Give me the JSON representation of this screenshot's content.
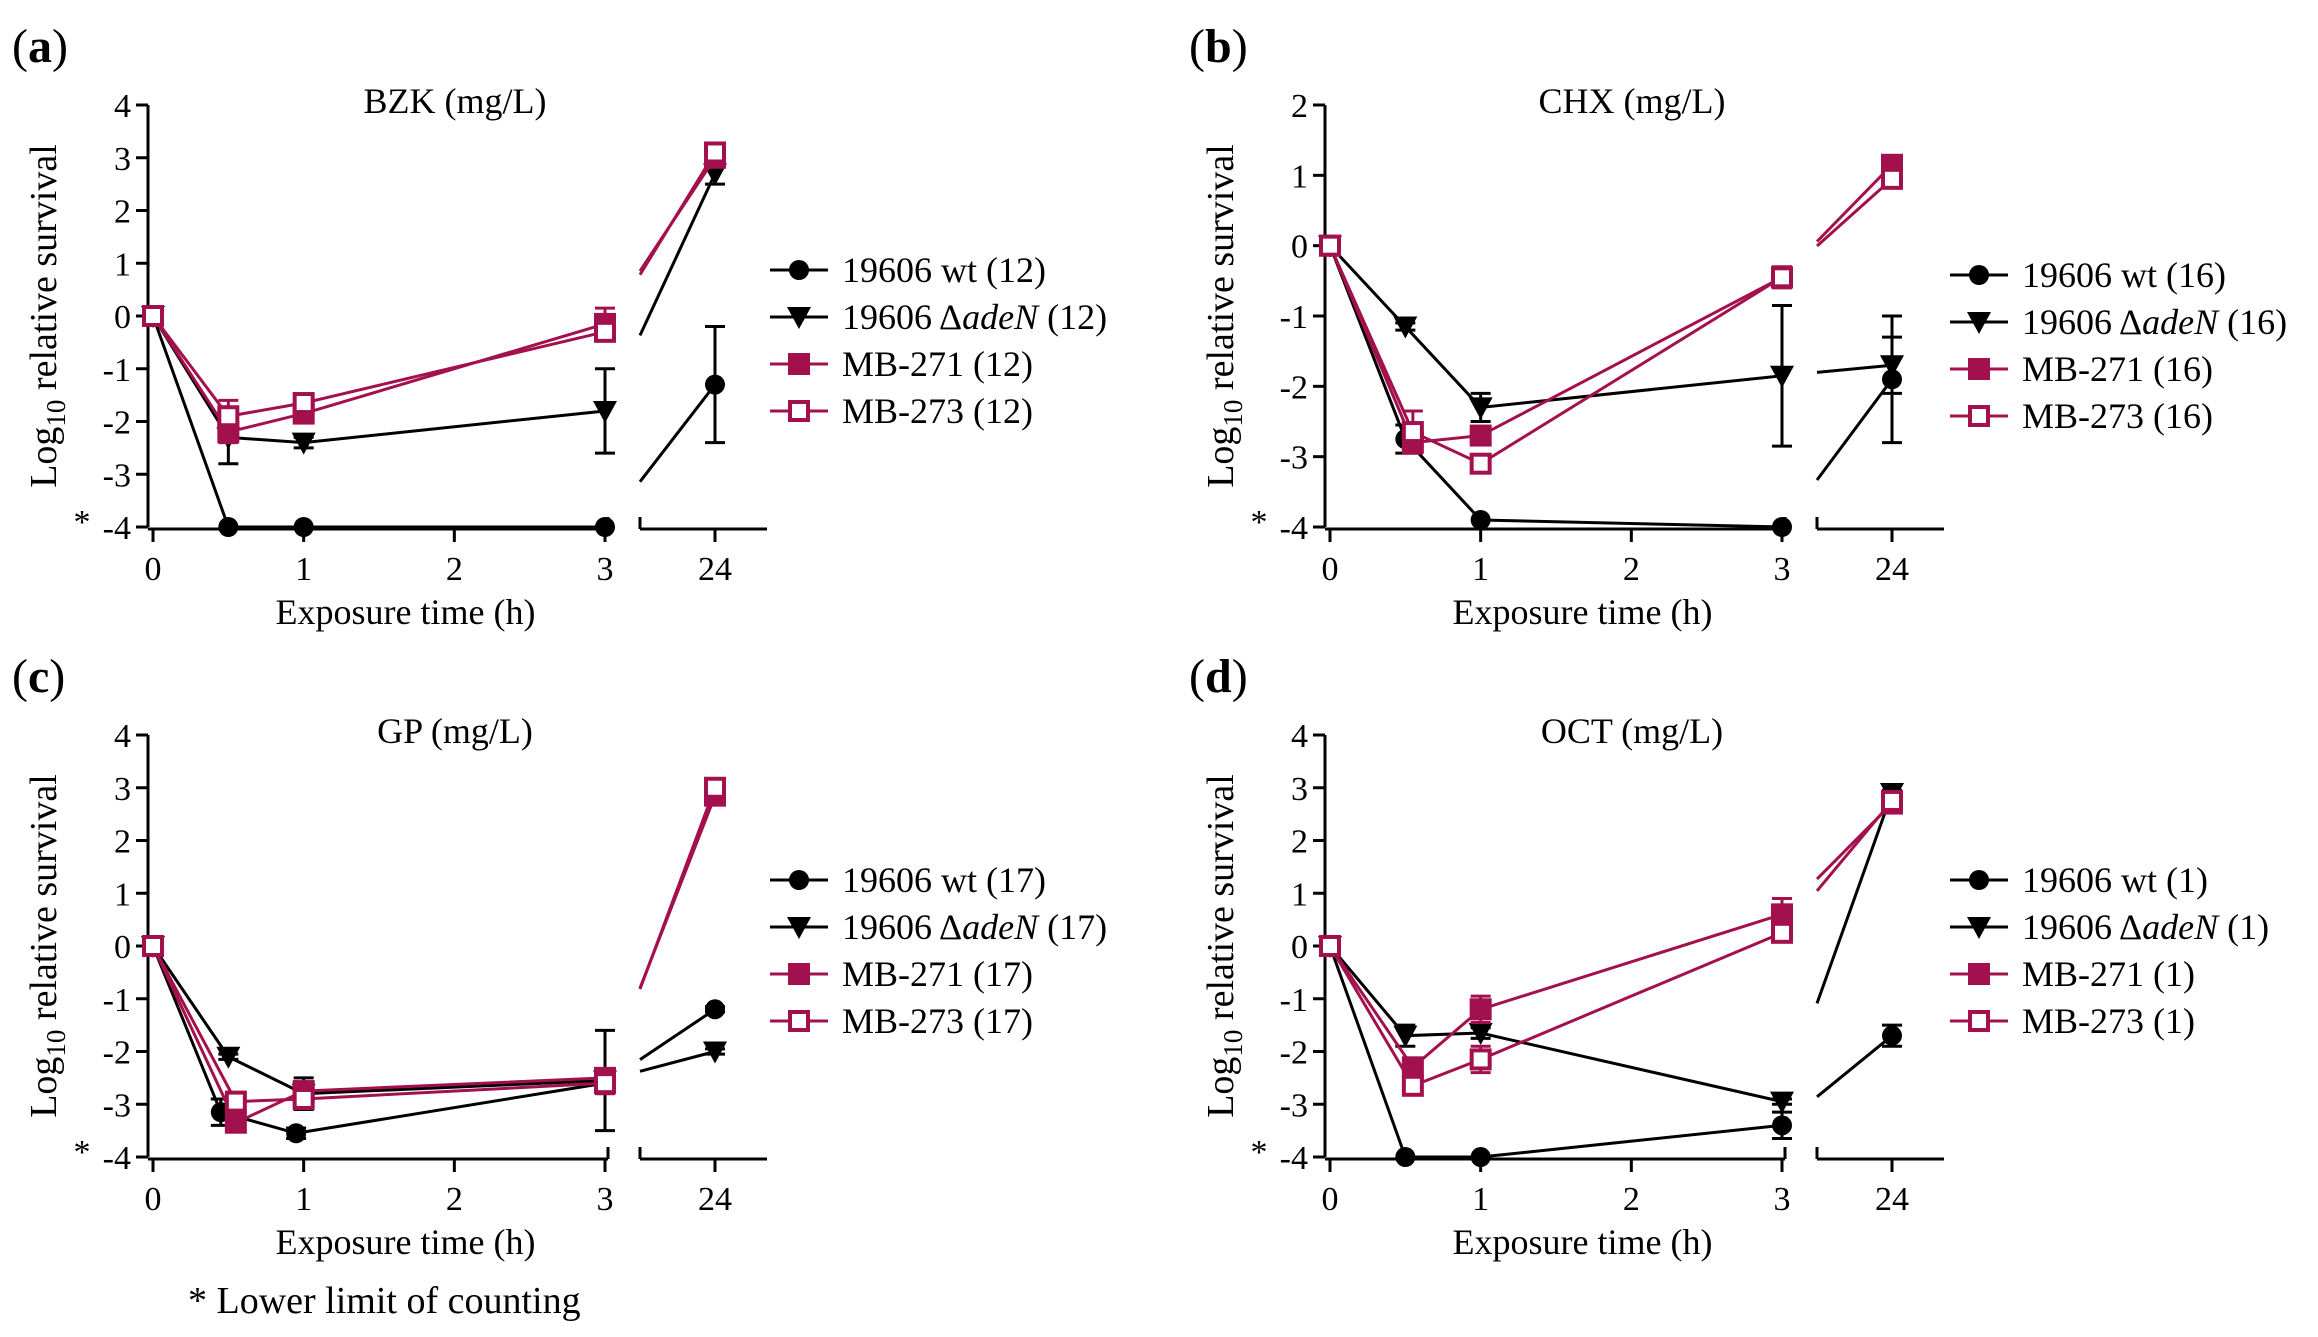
{
  "footnote": "* Lower limit of counting",
  "colors": {
    "black_series": "#000000",
    "magenta_series": "#a3104e"
  },
  "chart_data": [
    {
      "type": "line",
      "panel_label": "(a)",
      "title": "BZK (mg/L)",
      "xlabel": "Exposure time (h)",
      "ylabel": "Log10 relative survival",
      "ylabel_parts": {
        "main": "Log",
        "sub": "10",
        "rest": " relative survival"
      },
      "x_ticks": [
        "0",
        "1",
        "2",
        "3",
        "24"
      ],
      "y_ticks": [
        "4",
        "3",
        "2",
        "1",
        "0",
        "-1",
        "-2",
        "-3",
        "-4"
      ],
      "ylim": [
        -4,
        4
      ],
      "lower_limit_marker": "*",
      "legend_position": "right",
      "series": [
        {
          "name": "19606 wt",
          "value_label": " (12)",
          "italic": "",
          "marker": "circle",
          "color": "#000000",
          "points": [
            [
              0,
              0
            ],
            [
              0.5,
              -4
            ],
            [
              1,
              -4
            ],
            [
              3,
              -4
            ],
            [
              24,
              -1.3
            ]
          ],
          "errors": [
            0,
            0,
            0,
            0,
            1.1
          ]
        },
        {
          "name": "19606 Δ",
          "value_label": " (12)",
          "italic": "adeN",
          "marker": "triangle",
          "color": "#000000",
          "points": [
            [
              0,
              0
            ],
            [
              0.5,
              -2.3
            ],
            [
              1,
              -2.4
            ],
            [
              3,
              -1.8
            ],
            [
              24,
              2.7
            ]
          ],
          "errors": [
            0,
            0.5,
            0.1,
            0.8,
            0.2
          ]
        },
        {
          "name": "MB-271",
          "value_label": " (12)",
          "italic": "",
          "marker": "square-filled",
          "color": "#a3104e",
          "points": [
            [
              0,
              0
            ],
            [
              0.5,
              -2.2
            ],
            [
              1,
              -1.85
            ],
            [
              3,
              -0.15
            ],
            [
              24,
              3.0
            ]
          ],
          "errors": [
            0,
            0.2,
            0.1,
            0.3,
            0.1
          ]
        },
        {
          "name": "MB-273",
          "value_label": " (12)",
          "italic": "",
          "marker": "square-open",
          "color": "#a3104e",
          "points": [
            [
              0,
              0
            ],
            [
              0.5,
              -1.9
            ],
            [
              1,
              -1.65
            ],
            [
              3,
              -0.3
            ],
            [
              24,
              3.1
            ]
          ],
          "errors": [
            0,
            0.3,
            0.1,
            0.1,
            0.1
          ]
        }
      ]
    },
    {
      "type": "line",
      "panel_label": "(b)",
      "title": "CHX (mg/L)",
      "xlabel": "Exposure time (h)",
      "ylabel": "Log10 relative survival",
      "ylabel_parts": {
        "main": "Log",
        "sub": "10",
        "rest": " relative survival"
      },
      "x_ticks": [
        "0",
        "1",
        "2",
        "3",
        "24"
      ],
      "y_ticks": [
        "2",
        "1",
        "0",
        "-1",
        "-2",
        "-3",
        "-4"
      ],
      "ylim": [
        -4,
        2
      ],
      "lower_limit_marker": "*",
      "legend_position": "right",
      "series": [
        {
          "name": "19606 wt",
          "value_label": " (16)",
          "italic": "",
          "marker": "circle",
          "color": "#000000",
          "points": [
            [
              0,
              0
            ],
            [
              0.5,
              -2.75
            ],
            [
              1,
              -3.9
            ],
            [
              3,
              -4
            ],
            [
              24,
              -1.9
            ]
          ],
          "errors": [
            0,
            0.2,
            0,
            0,
            0.9
          ]
        },
        {
          "name": "19606 Δ",
          "value_label": " (16)",
          "italic": "adeN",
          "marker": "triangle",
          "color": "#000000",
          "points": [
            [
              0,
              0
            ],
            [
              0.5,
              -1.15
            ],
            [
              1,
              -2.3
            ],
            [
              3,
              -1.85
            ],
            [
              24,
              -1.7
            ]
          ],
          "errors": [
            0,
            0.05,
            0.2,
            1.0,
            0.4
          ]
        },
        {
          "name": "MB-271",
          "value_label": " (16)",
          "italic": "",
          "marker": "square-filled",
          "color": "#a3104e",
          "points": [
            [
              0,
              0
            ],
            [
              0.55,
              -2.8
            ],
            [
              1,
              -2.7
            ],
            [
              3,
              -0.45
            ],
            [
              24,
              1.15
            ]
          ],
          "errors": [
            0,
            0.15,
            0.1,
            0.1,
            0.05
          ]
        },
        {
          "name": "MB-273",
          "value_label": " (16)",
          "italic": "",
          "marker": "square-open",
          "color": "#a3104e",
          "points": [
            [
              0,
              0
            ],
            [
              0.55,
              -2.65
            ],
            [
              1,
              -3.1
            ],
            [
              3,
              -0.45
            ],
            [
              24,
              0.95
            ]
          ],
          "errors": [
            0,
            0.3,
            0.1,
            0.15,
            0.05
          ]
        }
      ]
    },
    {
      "type": "line",
      "panel_label": "(c)",
      "title": "GP (mg/L)",
      "xlabel": "Exposure time (h)",
      "ylabel": "Log10 relative survival",
      "ylabel_parts": {
        "main": "Log",
        "sub": "10",
        "rest": " relative survival"
      },
      "x_ticks": [
        "0",
        "1",
        "2",
        "3",
        "24"
      ],
      "y_ticks": [
        "4",
        "3",
        "2",
        "1",
        "0",
        "-1",
        "-2",
        "-3",
        "-4"
      ],
      "ylim": [
        -4,
        4
      ],
      "lower_limit_marker": "*",
      "legend_position": "right",
      "series": [
        {
          "name": "19606 wt",
          "value_label": " (17)",
          "italic": "",
          "marker": "circle",
          "color": "#000000",
          "points": [
            [
              0,
              0
            ],
            [
              0.45,
              -3.15
            ],
            [
              0.95,
              -3.55
            ],
            [
              3,
              -2.6
            ],
            [
              24,
              -1.2
            ]
          ],
          "errors": [
            0,
            0.25,
            0.1,
            0.1,
            0.05
          ]
        },
        {
          "name": "19606 Δ",
          "value_label": " (17)",
          "italic": "adeN",
          "marker": "triangle",
          "color": "#000000",
          "points": [
            [
              0,
              0
            ],
            [
              0.5,
              -2.1
            ],
            [
              1,
              -2.8
            ],
            [
              3,
              -2.55
            ],
            [
              24,
              -2.0
            ]
          ],
          "errors": [
            0,
            0.05,
            0.3,
            0.95,
            0.05
          ]
        },
        {
          "name": "MB-271",
          "value_label": " (17)",
          "italic": "",
          "marker": "square-filled",
          "color": "#a3104e",
          "points": [
            [
              0,
              0
            ],
            [
              0.55,
              -3.35
            ],
            [
              1,
              -2.75
            ],
            [
              3,
              -2.5
            ],
            [
              24,
              2.85
            ]
          ],
          "errors": [
            0,
            0.1,
            0.1,
            0.05,
            0.1
          ]
        },
        {
          "name": "MB-273",
          "value_label": " (17)",
          "italic": "",
          "marker": "square-open",
          "color": "#a3104e",
          "points": [
            [
              0,
              0
            ],
            [
              0.55,
              -2.95
            ],
            [
              1,
              -2.9
            ],
            [
              3,
              -2.6
            ],
            [
              24,
              3.0
            ]
          ],
          "errors": [
            0,
            0.1,
            0.1,
            0.2,
            0.05
          ]
        }
      ]
    },
    {
      "type": "line",
      "panel_label": "(d)",
      "title": "OCT (mg/L)",
      "xlabel": "Exposure time (h)",
      "ylabel": "Log10 relative survival",
      "ylabel_parts": {
        "main": "Log",
        "sub": "10",
        "rest": " relative survival"
      },
      "x_ticks": [
        "0",
        "1",
        "2",
        "3",
        "24"
      ],
      "y_ticks": [
        "4",
        "3",
        "2",
        "1",
        "0",
        "-1",
        "-2",
        "-3",
        "-4"
      ],
      "ylim": [
        -4,
        4
      ],
      "lower_limit_marker": "*",
      "legend_position": "right",
      "series": [
        {
          "name": "19606 wt",
          "value_label": " (1)",
          "italic": "",
          "marker": "circle",
          "color": "#000000",
          "points": [
            [
              0,
              0
            ],
            [
              0.5,
              -4
            ],
            [
              1,
              -4
            ],
            [
              3,
              -3.4
            ],
            [
              24,
              -1.7
            ]
          ],
          "errors": [
            0,
            0,
            0,
            0.25,
            0.2
          ]
        },
        {
          "name": "19606 Δ",
          "value_label": " (1)",
          "italic": "adeN",
          "marker": "triangle",
          "color": "#000000",
          "points": [
            [
              0,
              0
            ],
            [
              0.5,
              -1.7
            ],
            [
              1,
              -1.65
            ],
            [
              3,
              -2.95
            ],
            [
              24,
              2.9
            ]
          ],
          "errors": [
            0,
            0.2,
            0.1,
            0.05,
            0.05
          ]
        },
        {
          "name": "MB-271",
          "value_label": " (1)",
          "italic": "",
          "marker": "square-filled",
          "color": "#a3104e",
          "points": [
            [
              0,
              0
            ],
            [
              0.55,
              -2.3
            ],
            [
              1,
              -1.2
            ],
            [
              3,
              0.6
            ],
            [
              24,
              2.7
            ]
          ],
          "errors": [
            0,
            0.15,
            0.25,
            0.3,
            0.1
          ]
        },
        {
          "name": "MB-273",
          "value_label": " (1)",
          "italic": "",
          "marker": "square-open",
          "color": "#a3104e",
          "points": [
            [
              0,
              0
            ],
            [
              0.55,
              -2.65
            ],
            [
              1,
              -2.15
            ],
            [
              3,
              0.25
            ],
            [
              24,
              2.75
            ]
          ],
          "errors": [
            0,
            0.15,
            0.25,
            0.1,
            0.1
          ]
        }
      ]
    }
  ]
}
